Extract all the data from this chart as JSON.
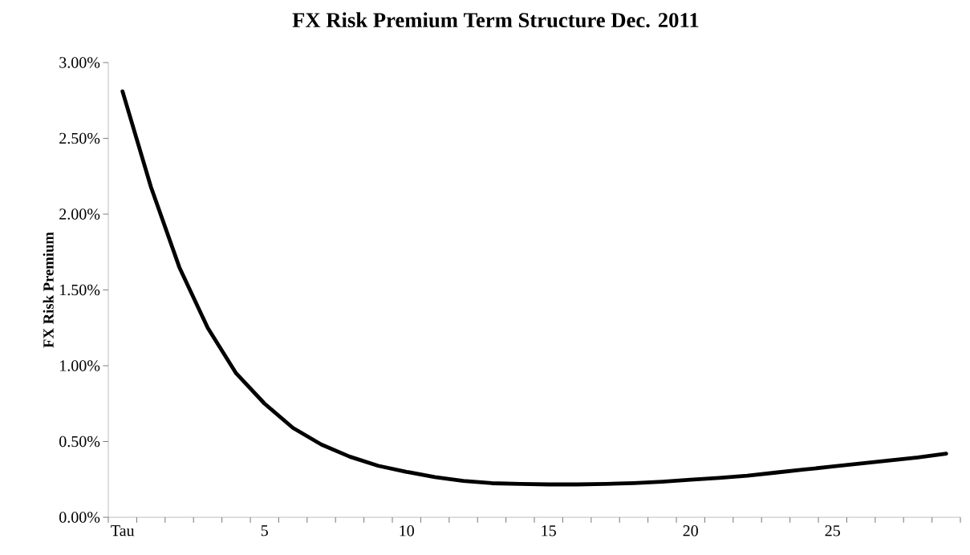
{
  "chart_data": {
    "type": "line",
    "title": "FX Risk Premium Term Structure Dec. 2011",
    "ylabel": "FX Risk Premium",
    "categories": [
      "Tau",
      null,
      null,
      null,
      null,
      "5",
      null,
      null,
      null,
      null,
      "10",
      null,
      null,
      null,
      null,
      "15",
      null,
      null,
      null,
      null,
      "20",
      null,
      null,
      null,
      null,
      "25",
      null,
      null,
      null,
      null
    ],
    "series": [
      {
        "color": "#000000",
        "values": [
          2.81,
          2.18,
          1.65,
          1.25,
          0.95,
          0.75,
          0.59,
          0.48,
          0.4,
          0.34,
          0.3,
          0.265,
          0.24,
          0.225,
          0.22,
          0.217,
          0.217,
          0.22,
          0.226,
          0.235,
          0.248,
          0.26,
          0.275,
          0.295,
          0.315,
          0.335,
          0.355,
          0.375,
          0.395,
          0.42
        ]
      }
    ],
    "ylim": [
      0,
      3
    ],
    "yticks": [
      {
        "value": 0,
        "label": "0.00%"
      },
      {
        "value": 0.5,
        "label": "0.50%"
      },
      {
        "value": 1,
        "label": "1.00%"
      },
      {
        "value": 1.5,
        "label": "1.50%"
      },
      {
        "value": 2,
        "label": "2.00%"
      },
      {
        "value": 2.5,
        "label": "2.50%"
      },
      {
        "value": 3,
        "label": "3.00%"
      }
    ],
    "marker": "none",
    "line_style": "solid"
  }
}
